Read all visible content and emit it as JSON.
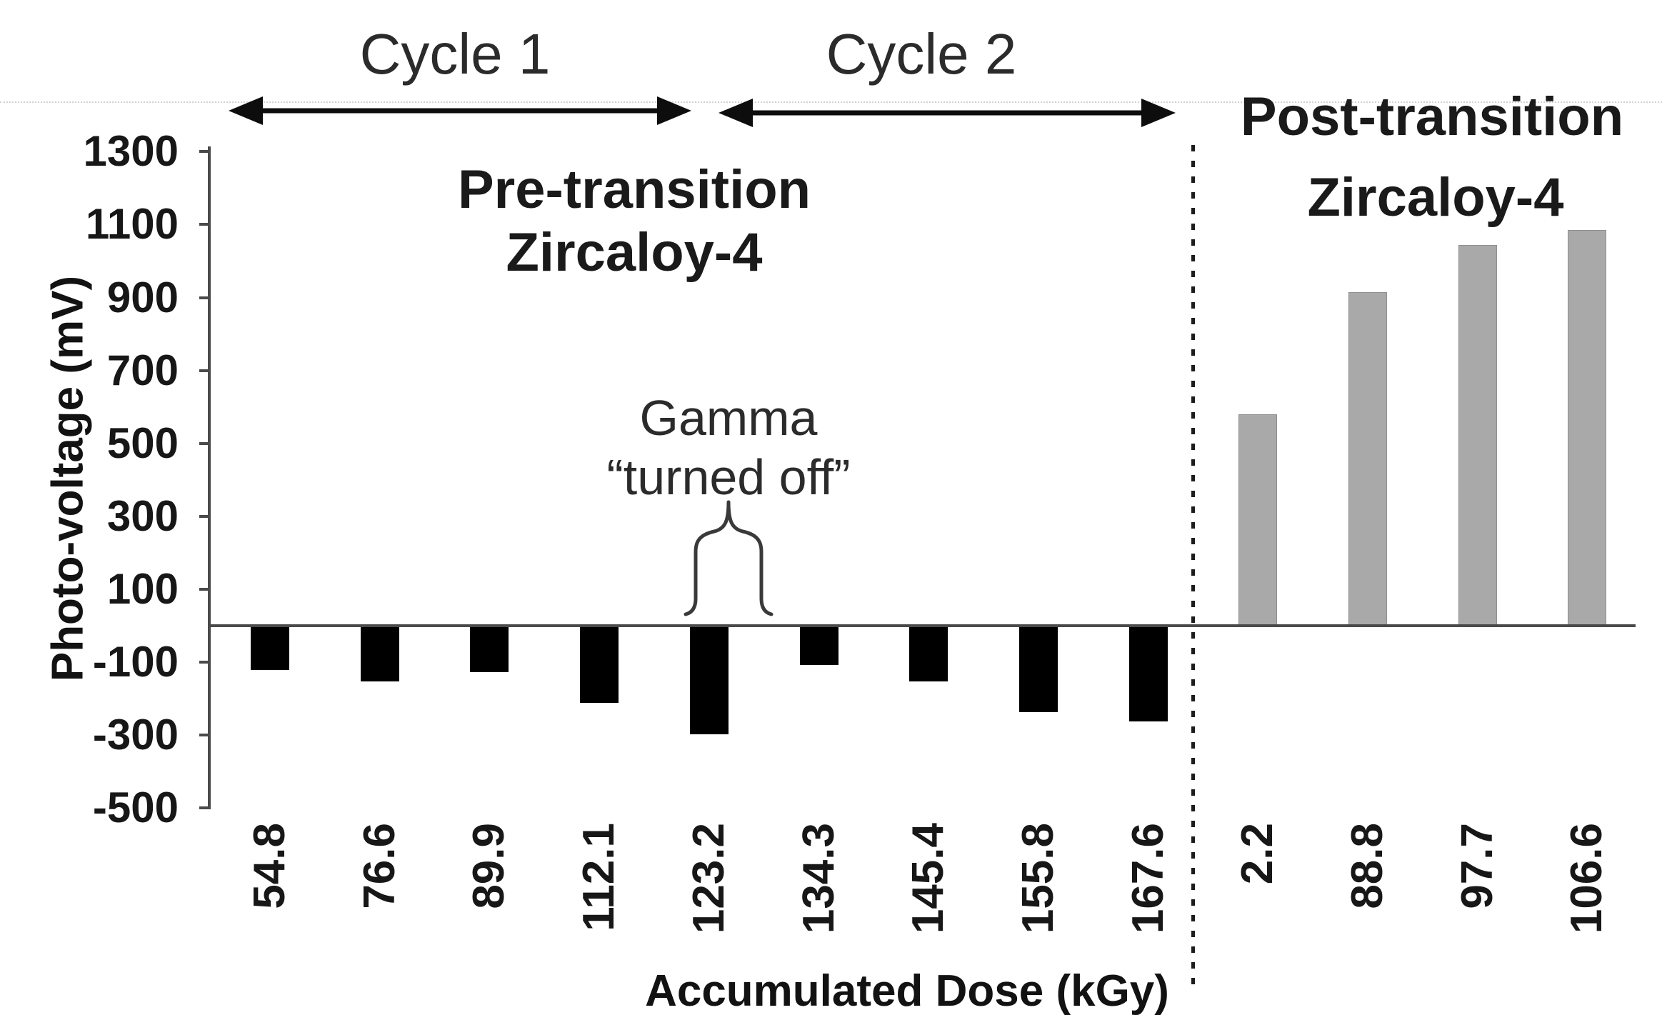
{
  "chart_data": {
    "type": "bar",
    "title": "",
    "xlabel": "Accumulated Dose (kGy)",
    "ylabel": "Photo-voltage (mV)",
    "ylim": [
      -500,
      1300
    ],
    "yticks": [
      1300,
      1100,
      900,
      700,
      500,
      300,
      100,
      -100,
      -300,
      -500
    ],
    "grid": false,
    "legend_position": "none",
    "series": [
      {
        "name": "Pre-transition Zircaloy-4",
        "color": "#000000",
        "categories": [
          "54.8",
          "76.6",
          "89.9",
          "112.1",
          "123.2",
          "134.3",
          "145.4",
          "155.8",
          "167.6"
        ],
        "values": [
          -120,
          -150,
          -125,
          -210,
          -295,
          -105,
          -150,
          -235,
          -260
        ]
      },
      {
        "name": "Post-transition Zircaloy-4",
        "color": "#a9a9a9",
        "categories": [
          "2.2",
          "88.8",
          "97.7",
          "106.6"
        ],
        "values": [
          580,
          915,
          1045,
          1085
        ]
      }
    ]
  },
  "annotations": {
    "cycle1": "Cycle 1",
    "cycle2": "Cycle 2",
    "pre_zone_line1": "Pre-transition",
    "pre_zone_line2": "Zircaloy-4",
    "post_zone_line1": "Post-transition",
    "post_zone_line2": "Zircaloy-4",
    "gamma_line1": "Gamma",
    "gamma_line2": "“turned off”"
  },
  "axes": {
    "x_title": "Accumulated Dose (kGy)",
    "y_title": "Photo-voltage (mV)"
  }
}
